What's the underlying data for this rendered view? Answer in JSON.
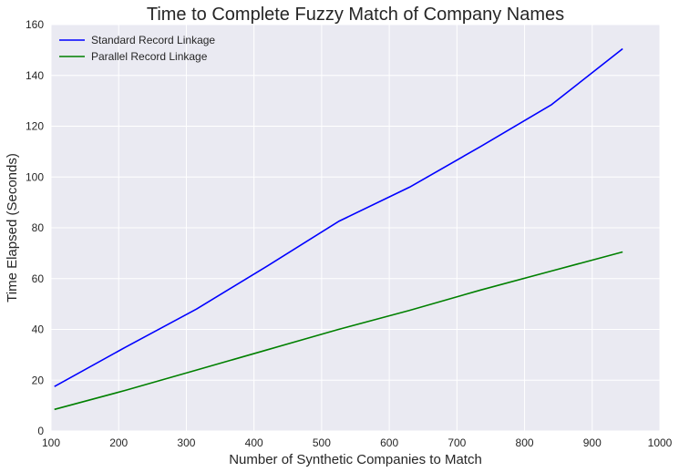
{
  "chart_data": {
    "type": "line",
    "title": "Time to Complete Fuzzy Match of Company Names",
    "xlabel": "Number of Synthetic Companies to Match",
    "ylabel": "Time Elapsed (Seconds)",
    "xlim": [
      100,
      1000
    ],
    "ylim": [
      0,
      160
    ],
    "xticks": [
      100,
      200,
      300,
      400,
      500,
      600,
      700,
      800,
      900,
      1000
    ],
    "yticks": [
      0,
      20,
      40,
      60,
      80,
      100,
      120,
      140,
      160
    ],
    "grid": true,
    "legend_position": "top-left",
    "series": [
      {
        "name": "Standard Record Linkage",
        "color": "#0000ff",
        "x": [
          105,
          210,
          315,
          420,
          525,
          630,
          735,
          840,
          945
        ],
        "y": [
          17.5,
          33,
          48,
          65,
          82.5,
          96,
          112,
          128.5,
          150.5
        ]
      },
      {
        "name": "Parallel Record Linkage",
        "color": "#008000",
        "x": [
          105,
          210,
          315,
          420,
          525,
          630,
          735,
          840,
          945
        ],
        "y": [
          8.5,
          16,
          24,
          32,
          40,
          47.5,
          55.5,
          63,
          70.5
        ]
      }
    ]
  }
}
